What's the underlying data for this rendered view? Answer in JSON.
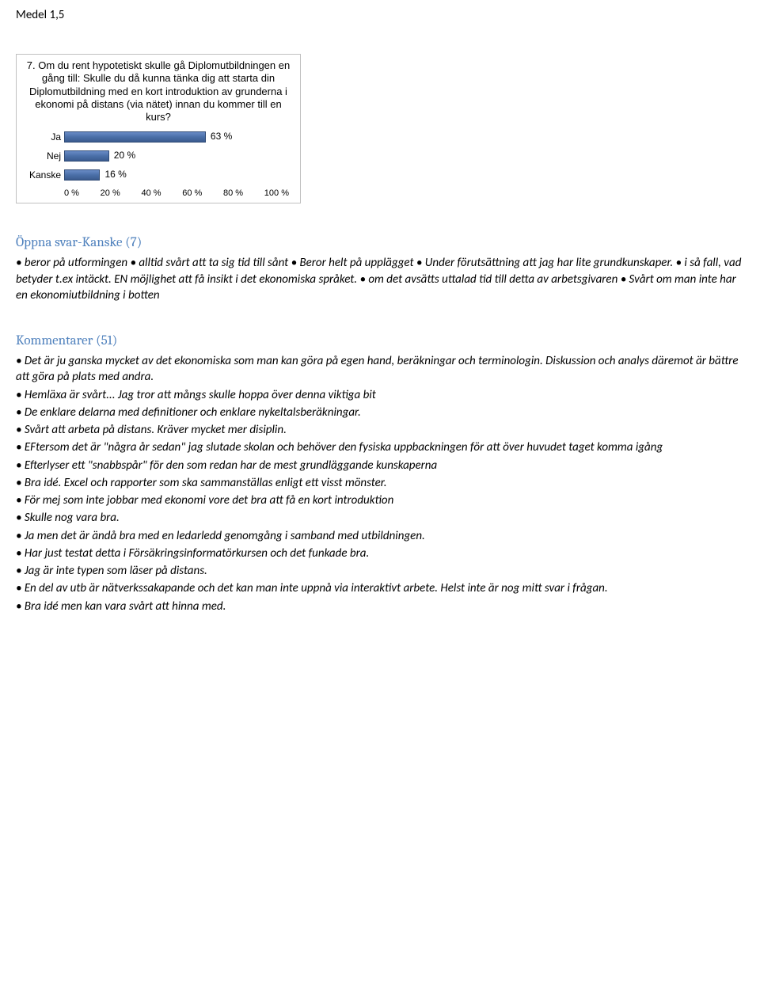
{
  "top_label": "Medel 1,5",
  "chart": {
    "type": "bar-horizontal",
    "question_number": "7.",
    "question_text": "Om du rent hypotetiskt skulle gå Diplomutbildningen en gång till: Skulle du då kunna tänka dig att starta din Diplomutbildning med en kort introduktion av grunderna i ekonomi på distans (via nätet) innan du kommer till en kurs?",
    "categories": [
      "Ja",
      "Nej",
      "Kanske"
    ],
    "values": [
      63,
      20,
      16
    ],
    "value_labels": [
      "63 %",
      "20 %",
      "16 %"
    ],
    "bar_color_top": "#6a8cc7",
    "bar_color_bottom": "#3b5b8f",
    "bar_border": "#2f4a75",
    "x_ticks": [
      "0 %",
      "20 %",
      "40 %",
      "60 %",
      "80 %",
      "100 %"
    ],
    "xmax": 100,
    "background": "#ffffff",
    "border_color": "#c0c0c0",
    "label_fontsize": 12,
    "question_fontsize": 13
  },
  "section1": {
    "heading": "Öppna svar-Kanske (7)",
    "body": "• beror på utformingen • alltid svårt att ta sig tid till sånt • Beror helt på upplägget • Under förutsättning att jag har lite grundkunskaper. • i så fall, vad betyder t.ex intäckt. EN möjlighet att få insikt i det ekonomiska språket. • om det avsätts uttalad tid till detta av arbetsgivaren • Svårt om man inte har en ekonomiutbildning i botten"
  },
  "section2": {
    "heading": "Kommentarer (51)",
    "lines": [
      "• Det är ju ganska mycket av det ekonomiska som man kan göra på egen hand, beräkningar och terminologin. Diskussion och analys däremot är bättre att göra på plats med andra.",
      "• Hemläxa är svårt... Jag tror att mångs skulle hoppa över denna viktiga bit",
      "• De enklare delarna med definitioner och enklare nykeltalsberäkningar.",
      "• Svårt att arbeta på distans. Kräver mycket mer disiplin.",
      "• EFtersom det är \"några år sedan\" jag slutade skolan och behöver den fysiska uppbackningen för att över huvudet taget komma igång",
      "• Efterlyser ett \"snabbspår\" för den som redan har de mest grundläggande kunskaperna",
      "• Bra idé. Excel och rapporter som ska sammanställas enligt ett visst mönster.",
      "• För mej som inte jobbar med ekonomi vore det bra att få en kort introduktion",
      "• Skulle nog vara bra.",
      "• Ja men det är ändå bra med en ledarledd genomgång i samband med utbildningen.",
      "• Har just testat detta i Försäkringsinformatörkursen och det funkade bra.",
      "• Jag är inte typen som läser på distans.",
      "• En del av utb är nätverkssakapande och det kan man inte uppnå via interaktivt arbete. Helst inte är nog mitt svar i frågan.",
      "• Bra idé men kan vara svårt att hinna med."
    ]
  }
}
